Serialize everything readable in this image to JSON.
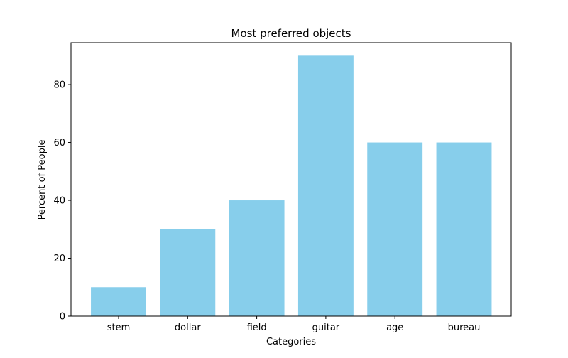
{
  "chart_data": {
    "type": "bar",
    "title": "Most preferred objects",
    "xlabel": "Categories",
    "ylabel": "Percent of People",
    "categories": [
      "stem",
      "dollar",
      "field",
      "guitar",
      "age",
      "bureau"
    ],
    "values": [
      10,
      30,
      40,
      90,
      60,
      60
    ],
    "ylim": [
      0,
      94.5
    ],
    "yticks": [
      0,
      20,
      40,
      60,
      80
    ],
    "bar_color": "#87CEEB",
    "grid": false,
    "legend": false
  }
}
